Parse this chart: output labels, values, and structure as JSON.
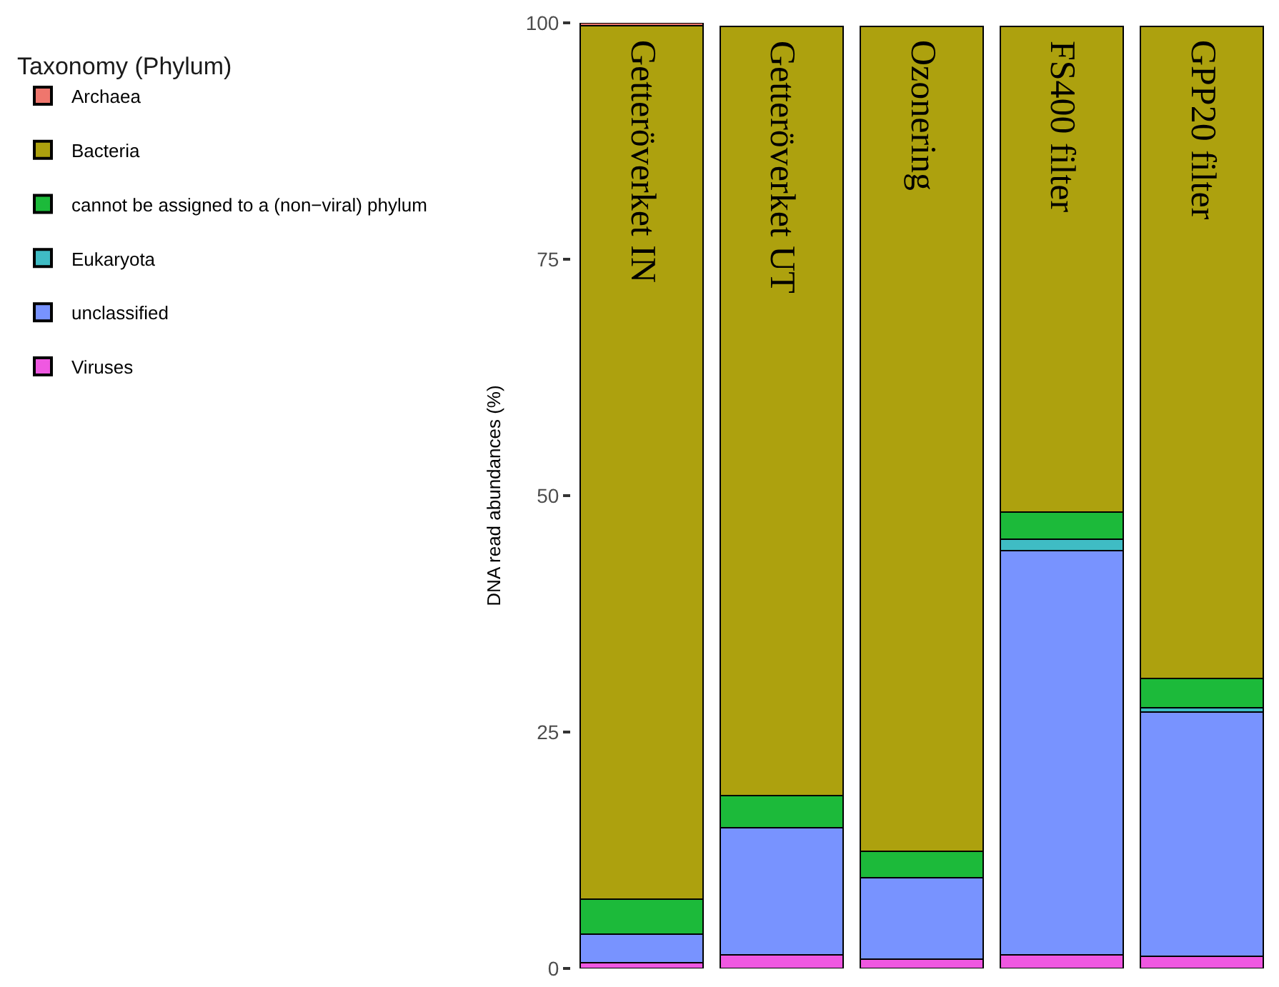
{
  "chart_data": {
    "type": "bar",
    "stacked": true,
    "ylabel": "DNA read abundances (%)",
    "legend_title": "Taxonomy (Phylum)",
    "legend": "left",
    "categories": [
      "Getteröverket IN",
      "Getteröverket UT",
      "Ozonering",
      "FS400 filter",
      "GPP20 filter"
    ],
    "ylim": [
      0,
      100
    ],
    "yticks": [
      0,
      25,
      50,
      75,
      100
    ],
    "series": [
      {
        "name": "Viruses",
        "color": "#ef58e1",
        "values": [
          0.6,
          1.4,
          1.0,
          1.4,
          1.3
        ]
      },
      {
        "name": "unclassified",
        "color": "#7893ff",
        "values": [
          3.0,
          13.5,
          8.6,
          42.8,
          25.8
        ]
      },
      {
        "name": "Eukaryota",
        "color": "#3fbcc4",
        "values": [
          null,
          null,
          null,
          1.2,
          0.5
        ]
      },
      {
        "name": "cannot be assigned to a (non−viral) phylum",
        "color": "#1cba3a",
        "values": [
          3.7,
          3.4,
          2.8,
          2.9,
          3.1
        ]
      },
      {
        "name": "Bacteria",
        "color": "#ada10e",
        "values": [
          92.4,
          81.3,
          87.2,
          51.3,
          68.9
        ]
      },
      {
        "name": "Archaea",
        "color": "#ef766d",
        "values": [
          0.3,
          null,
          null,
          null,
          null
        ]
      }
    ]
  }
}
